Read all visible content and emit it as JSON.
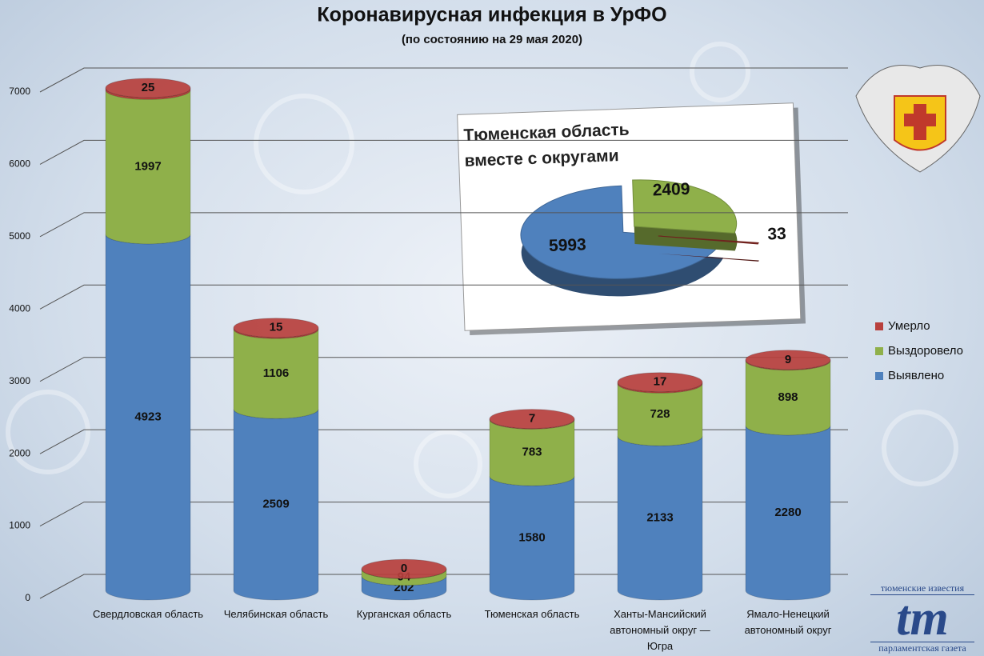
{
  "chart_data": [
    {
      "type": "stacked_cylinder",
      "title": "Коронавирусная инфекция в УрФО",
      "subtitle": "(по состоянию на 29 мая 2020)",
      "categories": [
        "Свердловская область",
        "Челябинская область",
        "Курганская область",
        "Тюменская область",
        "Ханты-Мансийский автономный округ — Югра",
        "Ямало-Ненецкий автономный округ"
      ],
      "series": [
        {
          "name": "Выявлено",
          "color": "#4f81bd",
          "values": [
            4923,
            2509,
            202,
            1580,
            2133,
            2280
          ]
        },
        {
          "name": "Выздоровело",
          "color": "#8fb04a",
          "values": [
            1997,
            1106,
            94,
            783,
            728,
            898
          ]
        },
        {
          "name": "Умерло",
          "color": "#b8403d",
          "values": [
            25,
            15,
            0,
            7,
            17,
            9
          ]
        }
      ],
      "ylim": [
        0,
        7000
      ],
      "yticks": [
        0,
        1000,
        2000,
        3000,
        4000,
        5000,
        6000,
        7000
      ],
      "grid": true,
      "legend": "right"
    },
    {
      "type": "pie",
      "title": "Тюменская область вместе с округами",
      "values": [
        5993,
        2409,
        33
      ],
      "colors": [
        "#4f81bd",
        "#8fb04a",
        "#8b2a25"
      ]
    }
  ],
  "logo": {
    "top": "тюменские известия",
    "mark": "tm",
    "bottom": "парламентская газета"
  }
}
